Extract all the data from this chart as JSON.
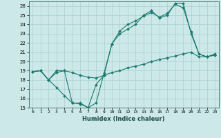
{
  "xlabel": "Humidex (Indice chaleur)",
  "ylabel": "",
  "background_color": "#cce8e8",
  "grid_color": "#aacfcf",
  "line_color": "#1a7a6e",
  "xlim": [
    -0.5,
    23.5
  ],
  "ylim": [
    15,
    26.5
  ],
  "xticks": [
    0,
    1,
    2,
    3,
    4,
    5,
    6,
    7,
    8,
    9,
    10,
    11,
    12,
    13,
    14,
    15,
    16,
    17,
    18,
    19,
    20,
    21,
    22,
    23
  ],
  "yticks": [
    15,
    16,
    17,
    18,
    19,
    20,
    21,
    22,
    23,
    24,
    25,
    26
  ],
  "series": [
    {
      "x": [
        0,
        1,
        2,
        3,
        4,
        5,
        6,
        7,
        8,
        9,
        10,
        11,
        12,
        13,
        14,
        15,
        16,
        17,
        18,
        19,
        20,
        21,
        22,
        23
      ],
      "y": [
        18.9,
        19.0,
        18.0,
        19.0,
        19.0,
        15.5,
        15.5,
        15.0,
        17.5,
        18.5,
        21.9,
        23.0,
        23.5,
        24.0,
        25.0,
        25.5,
        24.7,
        25.0,
        26.3,
        26.3,
        23.0,
        20.8,
        20.5,
        20.7
      ]
    },
    {
      "x": [
        0,
        1,
        2,
        3,
        4,
        5,
        6,
        7,
        8,
        9,
        10,
        11,
        12,
        13,
        14,
        15,
        16,
        17,
        18,
        19,
        20,
        21,
        22,
        23
      ],
      "y": [
        18.9,
        19.0,
        18.0,
        17.2,
        16.3,
        15.5,
        15.4,
        15.0,
        15.5,
        18.7,
        21.9,
        23.3,
        24.0,
        24.4,
        24.9,
        25.3,
        24.8,
        25.2,
        26.2,
        25.8,
        23.2,
        20.8,
        20.5,
        20.8
      ]
    },
    {
      "x": [
        0,
        1,
        2,
        3,
        4,
        5,
        6,
        7,
        8,
        9,
        10,
        11,
        12,
        13,
        14,
        15,
        16,
        17,
        18,
        19,
        20,
        21,
        22,
        23
      ],
      "y": [
        18.9,
        19.0,
        18.0,
        18.8,
        19.0,
        18.8,
        18.5,
        18.3,
        18.2,
        18.5,
        18.8,
        19.0,
        19.3,
        19.5,
        19.7,
        20.0,
        20.2,
        20.4,
        20.6,
        20.8,
        21.0,
        20.5,
        20.5,
        20.7
      ]
    }
  ]
}
